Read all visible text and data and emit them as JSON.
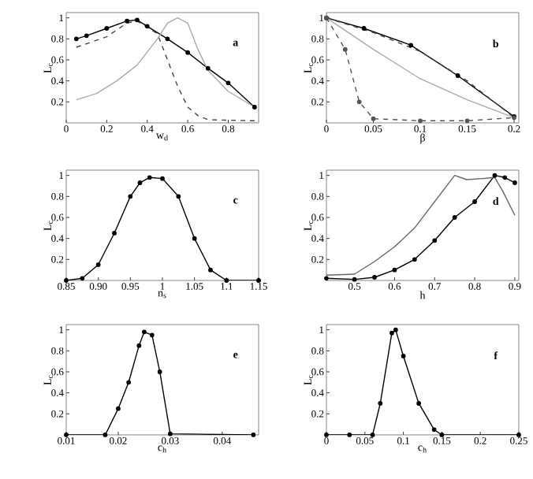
{
  "chart_data": [
    {
      "type": "line",
      "xlabel": "w$_{d}$",
      "ylabel": "L$_{c}$",
      "annotations": [
        "a"
      ],
      "xlim": [
        0,
        0.95
      ],
      "ylim": [
        0,
        1.05
      ],
      "xticks": [
        0,
        0.2,
        0.4,
        0.6,
        0.8
      ],
      "yticks": [
        0.2,
        0.4,
        0.6,
        0.8,
        1
      ],
      "series": [
        {
          "color": "#000000",
          "line_style": "solid",
          "marker": "circle",
          "x": [
            0.05,
            0.1,
            0.2,
            0.3,
            0.35,
            0.4,
            0.5,
            0.6,
            0.7,
            0.8,
            0.93
          ],
          "values": [
            0.8,
            0.83,
            0.9,
            0.97,
            0.98,
            0.92,
            0.8,
            0.67,
            0.52,
            0.38,
            0.15
          ]
        },
        {
          "color": "#444444",
          "line_style": "dashed",
          "marker": "none",
          "x": [
            0.05,
            0.2,
            0.3,
            0.35,
            0.45,
            0.5,
            0.55,
            0.6,
            0.65,
            0.7,
            0.93
          ],
          "values": [
            0.72,
            0.82,
            0.95,
            0.97,
            0.85,
            0.6,
            0.35,
            0.15,
            0.07,
            0.03,
            0.02
          ]
        },
        {
          "color": "#aaaaaa",
          "line_style": "solid",
          "marker": "none",
          "x": [
            0.05,
            0.15,
            0.25,
            0.35,
            0.45,
            0.5,
            0.55,
            0.6,
            0.65,
            0.7,
            0.8,
            0.93
          ],
          "values": [
            0.22,
            0.28,
            0.4,
            0.55,
            0.8,
            0.95,
            1.0,
            0.95,
            0.7,
            0.5,
            0.3,
            0.15
          ]
        }
      ]
    },
    {
      "type": "line",
      "xlabel": "β",
      "ylabel": "L$_{c}$",
      "annotations": [
        "b"
      ],
      "xlim": [
        0,
        0.205
      ],
      "ylim": [
        0,
        1.05
      ],
      "xticks": [
        0,
        0.05,
        0.1,
        0.15,
        0.2
      ],
      "yticks": [
        0.2,
        0.4,
        0.6,
        0.8,
        1
      ],
      "series": [
        {
          "color": "#000000",
          "line_style": "solid",
          "marker": "circle",
          "x": [
            0,
            0.04,
            0.09,
            0.14,
            0.2
          ],
          "values": [
            1,
            0.9,
            0.74,
            0.45,
            0.06
          ]
        },
        {
          "color": "#444444",
          "line_style": "dashed",
          "marker": "none",
          "x": [
            0,
            0.05,
            0.1,
            0.15,
            0.2
          ],
          "values": [
            1,
            0.86,
            0.68,
            0.4,
            0.05
          ]
        },
        {
          "color": "#aaaaaa",
          "line_style": "solid",
          "marker": "none",
          "x": [
            0,
            0.05,
            0.1,
            0.15,
            0.2
          ],
          "values": [
            1,
            0.7,
            0.42,
            0.22,
            0.05
          ]
        },
        {
          "color": "#555555",
          "line_style": "dashed",
          "marker": "circle",
          "x": [
            0,
            0.02,
            0.035,
            0.05,
            0.1,
            0.15,
            0.2
          ],
          "values": [
            1,
            0.7,
            0.2,
            0.04,
            0.02,
            0.02,
            0.05
          ]
        }
      ]
    },
    {
      "type": "line",
      "xlabel": "n$_{s}$",
      "ylabel": "L$_{c}$",
      "annotations": [
        "c"
      ],
      "xlim": [
        0.85,
        1.15
      ],
      "ylim": [
        0,
        1.05
      ],
      "xticks": [
        0.85,
        {
          "value": 0.9,
          "label": "0.90"
        },
        0.95,
        1,
        1.05,
        1.1,
        1.15
      ],
      "yticks": [
        0.2,
        0.4,
        0.6,
        0.8,
        1
      ],
      "series": [
        {
          "color": "#000000",
          "line_style": "solid",
          "marker": "circle",
          "x": [
            0.85,
            0.875,
            0.9,
            0.925,
            0.95,
            0.965,
            0.98,
            1,
            1.025,
            1.05,
            1.075,
            1.1,
            1.15
          ],
          "values": [
            0,
            0.02,
            0.15,
            0.45,
            0.8,
            0.93,
            0.98,
            0.97,
            0.8,
            0.4,
            0.1,
            0,
            0
          ]
        }
      ]
    },
    {
      "type": "line",
      "xlabel": "h",
      "ylabel": "L$_{c}$",
      "annotations": [
        "d"
      ],
      "xlim": [
        0.43,
        0.91
      ],
      "ylim": [
        0,
        1.05
      ],
      "xticks": [
        0.5,
        0.6,
        0.7,
        0.8,
        0.9
      ],
      "yticks": [
        0.2,
        0.4,
        0.6,
        0.8,
        1
      ],
      "series": [
        {
          "color": "#000000",
          "line_style": "solid",
          "marker": "circle",
          "x": [
            0.43,
            0.5,
            0.55,
            0.6,
            0.65,
            0.7,
            0.75,
            0.8,
            0.85,
            0.875,
            0.9
          ],
          "values": [
            0.02,
            0.01,
            0.03,
            0.1,
            0.2,
            0.38,
            0.6,
            0.75,
            1.0,
            0.98,
            0.93
          ]
        },
        {
          "color": "#666666",
          "line_style": "solid",
          "marker": "none",
          "x": [
            0.43,
            0.5,
            0.55,
            0.6,
            0.65,
            0.7,
            0.75,
            0.78,
            0.82,
            0.85,
            0.87,
            0.9
          ],
          "values": [
            0.05,
            0.06,
            0.18,
            0.32,
            0.5,
            0.75,
            1.0,
            0.96,
            0.97,
            0.98,
            0.85,
            0.62
          ]
        }
      ]
    },
    {
      "type": "line",
      "xlabel": "c$_{h}$",
      "ylabel": "L$_{c}$",
      "annotations": [
        "e"
      ],
      "xlim": [
        0.01,
        0.047
      ],
      "ylim": [
        0,
        1.05
      ],
      "xticks": [
        0.01,
        0.02,
        0.03,
        0.04
      ],
      "yticks": [
        0.2,
        0.4,
        0.6,
        0.8,
        1
      ],
      "series": [
        {
          "color": "#000000",
          "line_style": "solid",
          "marker": "circle",
          "x": [
            0.01,
            0.0175,
            0.02,
            0.022,
            0.024,
            0.025,
            0.0265,
            0.028,
            0.03,
            0.046
          ],
          "values": [
            0,
            0,
            0.25,
            0.5,
            0.85,
            0.98,
            0.95,
            0.6,
            0.01,
            0
          ]
        }
      ]
    },
    {
      "type": "line",
      "xlabel": "c$_{h}$",
      "ylabel": "L$_{c}$",
      "annotations": [
        "f"
      ],
      "xlim": [
        0,
        0.25
      ],
      "ylim": [
        0,
        1.05
      ],
      "xticks": [
        0,
        0.05,
        0.1,
        0.15,
        0.2,
        0.25
      ],
      "yticks": [
        0.2,
        0.4,
        0.6,
        0.8,
        1
      ],
      "series": [
        {
          "color": "#000000",
          "line_style": "solid",
          "marker": "circle",
          "x": [
            0,
            0.03,
            0.06,
            0.07,
            0.085,
            0.09,
            0.1,
            0.12,
            0.14,
            0.15,
            0.25
          ],
          "values": [
            0,
            0,
            0,
            0.3,
            0.97,
            1.0,
            0.75,
            0.3,
            0.05,
            0,
            0
          ]
        }
      ]
    }
  ]
}
